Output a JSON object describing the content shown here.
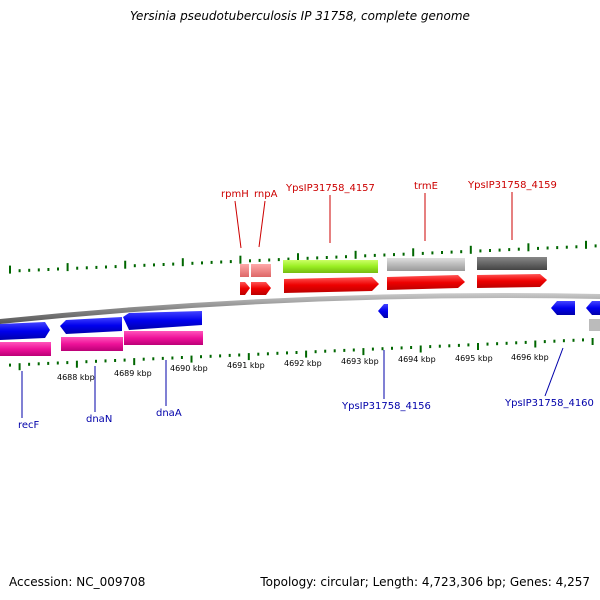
{
  "header": {
    "title": "Yersinia pseudotuberculosis IP 31758, complete genome"
  },
  "footer": {
    "accession": "Accession: NC_009708",
    "topology": "Topology: circular; Length: 4,723,306 bp; Genes: 4,257"
  },
  "colors": {
    "forward_label": "#cc0000",
    "reverse_label": "#0000aa",
    "forward_cds": "#ff0000",
    "reverse_cds": "#0000ee",
    "reverse_rna_row": "#ee1199",
    "rna_light": "#ee8888",
    "gene_green": "#99ee22",
    "gene_light_gray": "#bbbbbb",
    "gene_dark_gray": "#666666",
    "tick_green": "#006600",
    "backbone": "#888888"
  },
  "scale": {
    "unit": "kbp",
    "ticks": [
      {
        "label": "4688 kbp"
      },
      {
        "label": "4689 kbp"
      },
      {
        "label": "4690 kbp"
      },
      {
        "label": "4691 kbp"
      },
      {
        "label": "4692 kbp"
      },
      {
        "label": "4693 kbp"
      },
      {
        "label": "4694 kbp"
      },
      {
        "label": "4695 kbp"
      },
      {
        "label": "4696 kbp"
      }
    ]
  },
  "forward_genes": [
    {
      "name": "rpmH"
    },
    {
      "name": "rnpA"
    },
    {
      "name": "YpsIP31758_4157"
    },
    {
      "name": "trmE"
    },
    {
      "name": "YpsIP31758_4159"
    }
  ],
  "reverse_genes": [
    {
      "name": "recF"
    },
    {
      "name": "dnaN"
    },
    {
      "name": "dnaA"
    },
    {
      "name": "YpsIP31758_4156"
    },
    {
      "name": "YpsIP31758_4160"
    }
  ]
}
